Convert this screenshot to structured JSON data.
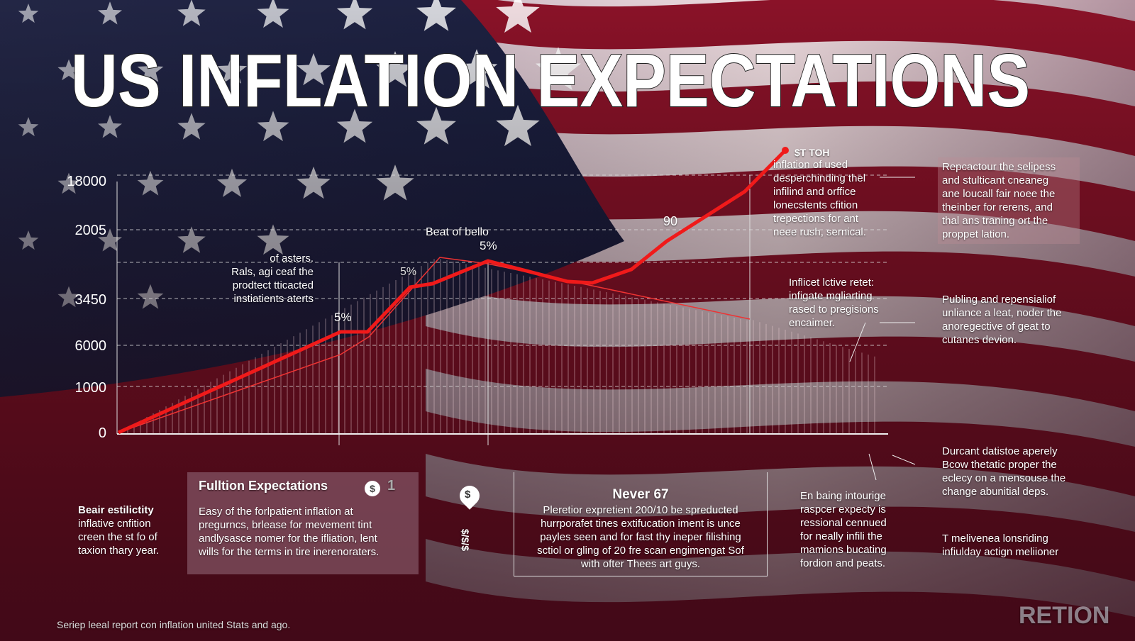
{
  "header": {
    "title": "US INFLATION EXPECTATIONS"
  },
  "axis_labels": [
    "18000",
    "2005",
    "3450",
    "6000",
    "1000",
    "0"
  ],
  "chart_annotations": {
    "peak_label": "Beat of bello",
    "pct_top": "5%",
    "pct_mid": "5%",
    "pct_low": "5%",
    "ninety": "90",
    "end_label": "$T TOH"
  },
  "notes": {
    "left_chart": [
      "of asters.",
      "Rals, agi ceaf the",
      "prodtect tticacted",
      "instiatients aterts"
    ],
    "right_top": [
      "inflation of used",
      "desperchinding thel",
      "infilind and orffice",
      "lonecstents cfition",
      "trepections for ant",
      "neee rush, sernical."
    ],
    "right_box": [
      "Repcactour the selipess",
      "and stulticant cneaneg",
      "ane loucall fair noee the",
      "theinber for rerens, and",
      "thal ans traning ort the",
      "proppet lation."
    ],
    "right_mid": [
      "Inflicet lctive retet:",
      "infigate mgliarting",
      "rased to pregisions",
      "encaimer."
    ],
    "far_right_mid": [
      "Publing and repensialiof",
      "unliance a leat, noder the",
      "anoregective of geat to",
      "cutanes devion."
    ],
    "far_right_low": [
      "Durcant datistoe aperely",
      "Bcow thetatic proper the",
      "eclecy on a mensouse the",
      "change abunitial deps."
    ],
    "right_bottom": [
      "En baing intourige",
      "raspcer expecty is",
      "ressional cennued",
      "for neally infili the",
      "mamions bucating",
      "fordion and peats."
    ],
    "far_right_bottom": [
      "T melivenea lonsriding",
      "infiulday actign meliioner"
    ],
    "left_bottom": [
      "Beair estilictity",
      "inflative cnfition",
      "creen the st fo of",
      "taxion thary year."
    ]
  },
  "panels": [
    {
      "title": "Fulltion Expectations",
      "badge": "1",
      "lines": [
        "Easy of the forlpatient inflation at",
        "pregurncs, brlease for mevement tint",
        "andlysasce nomer for the ifliation, lent",
        "wills for the terms in tire inerenoraters."
      ]
    },
    {
      "title": "Never 67",
      "lines": [
        "Pleretior expretient 200/10 be spreducted",
        "hurrporafet tines extifucation iment is unce",
        "payles seen and for fast thy ineper filishing",
        "sctiol or gling of 20 fre scan engimengat Sof",
        "with ofter Thees art guys."
      ]
    }
  ],
  "icons": {
    "dollar": "$",
    "vertical": "$/$/$"
  },
  "footer": "Seriep leeal report con inflation united Stats and ago.",
  "watermark": "RETION"
}
